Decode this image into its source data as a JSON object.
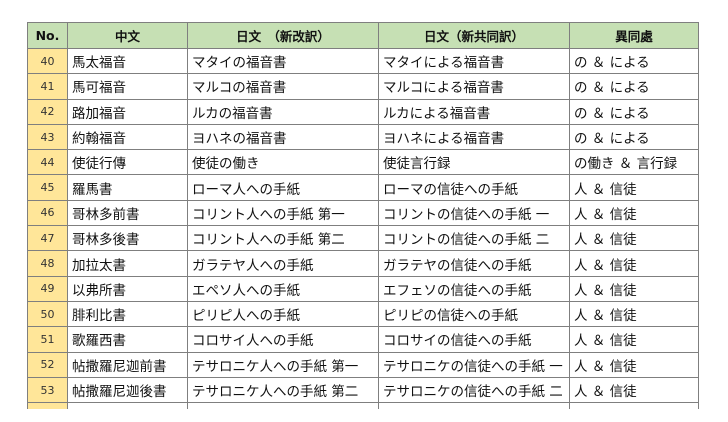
{
  "headers": [
    "No.",
    "中文",
    "日文　（新改訳）",
    "日文（新共同訳）",
    "異同處"
  ],
  "rows": [
    [
      "40",
      "馬太福音",
      "マタイの福音書",
      "マタイによる福音書",
      "の ＆ による"
    ],
    [
      "41",
      "馬可福音",
      "マルコの福音書",
      "マルコによる福音書",
      "の ＆ による"
    ],
    [
      "42",
      "路加福音",
      "ルカの福音書",
      "ルカによる福音書",
      "の ＆ による"
    ],
    [
      "43",
      "約翰福音",
      "ヨハネの福音書",
      "ヨハネによる福音書",
      "の ＆ による"
    ],
    [
      "44",
      "使徒行傳",
      "使徒の働き",
      "使徒言行録",
      "の働き ＆ 言行録"
    ],
    [
      "45",
      "羅馬書",
      "ローマ人への手紙",
      "ローマの信徒への手紙",
      "人 ＆ 信徒"
    ],
    [
      "46",
      "哥林多前書",
      "コリント人への手紙 第一",
      "コリントの信徒への手紙 一",
      "人 ＆ 信徒"
    ],
    [
      "47",
      "哥林多後書",
      "コリント人への手紙 第二",
      "コリントの信徒への手紙 二",
      "人 ＆ 信徒"
    ],
    [
      "48",
      "加拉太書",
      "ガラテヤ人への手紙",
      "ガラテヤの信徒への手紙",
      "人 ＆ 信徒"
    ],
    [
      "49",
      "以弗所書",
      "エペソ人への手紙",
      "エフェソの信徒への手紙",
      "人 ＆ 信徒"
    ],
    [
      "50",
      "腓利比書",
      "ピリピ人への手紙",
      "ピリピの信徒への手紙",
      "人 ＆ 信徒"
    ],
    [
      "51",
      "歌羅西書",
      "コロサイ人への手紙",
      "コロサイの信徒への手紙",
      "人 ＆ 信徒"
    ],
    [
      "52",
      "帖撒羅尼迦前書",
      "テサロニケ人への手紙 第一",
      "テサロニケの信徒への手紙 一",
      "人 ＆ 信徒"
    ],
    [
      "53",
      "帖撒羅尼迦後書",
      "テサロニケ人への手紙 第二",
      "テサロニケの信徒への手紙 二",
      "人 ＆ 信徒"
    ]
  ],
  "colors": {
    "header_bg": "#c6e0b4",
    "number_bg": "#ffe699",
    "border": "#7f7f7f"
  }
}
